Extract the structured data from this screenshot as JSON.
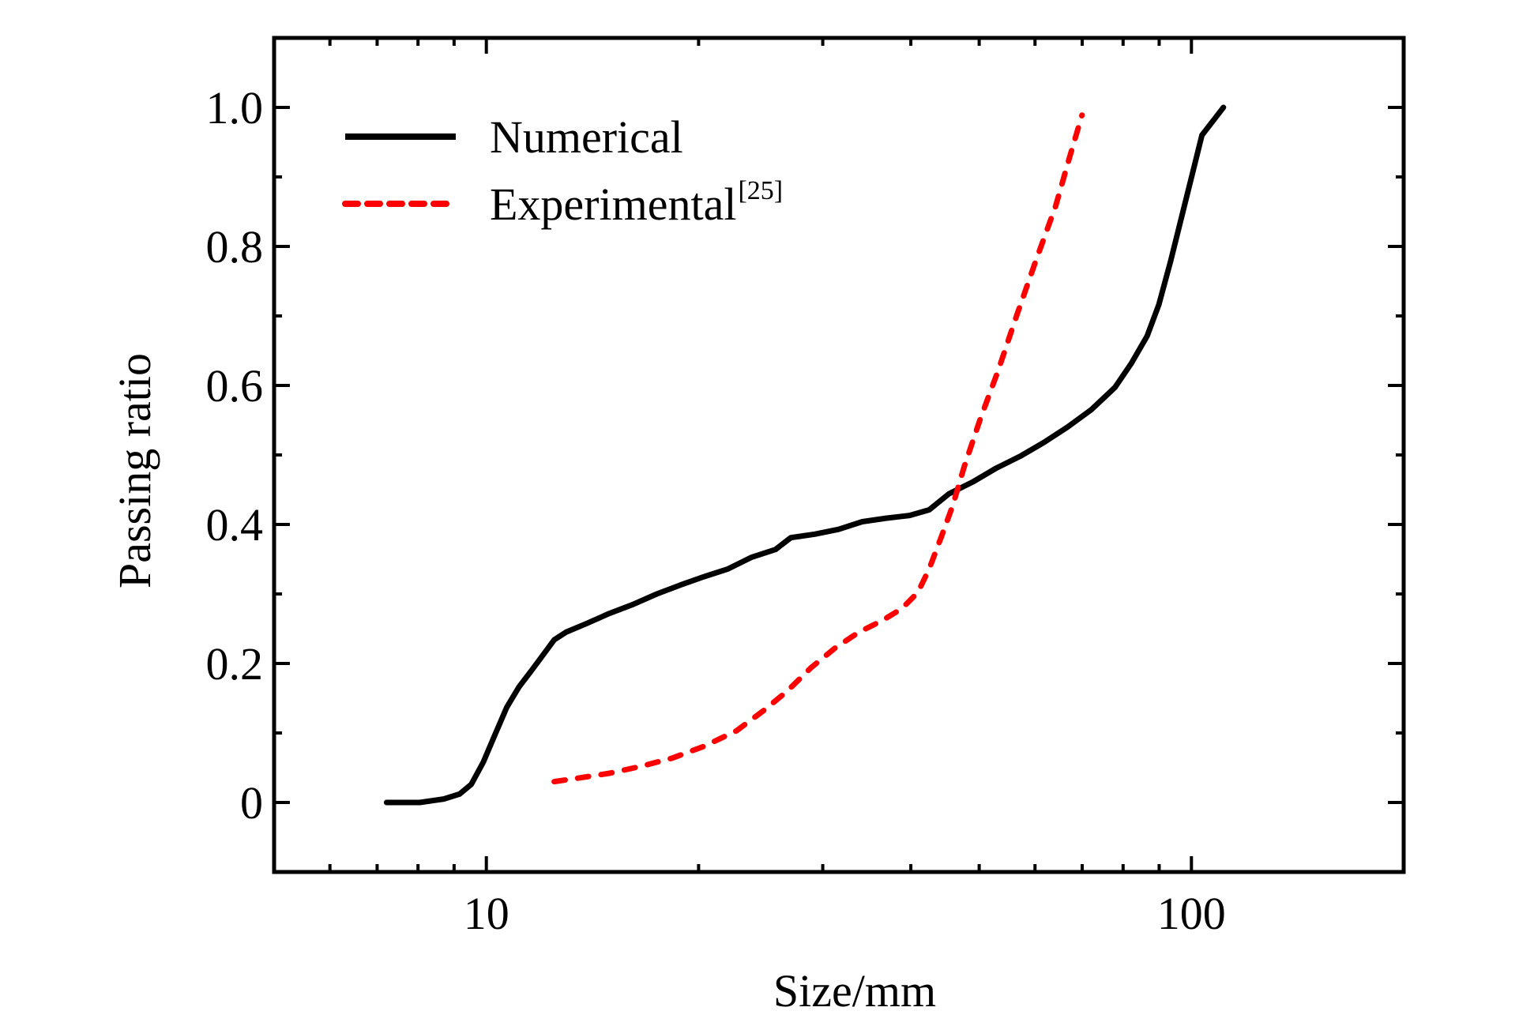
{
  "chart_data": {
    "type": "line",
    "title": "",
    "xlabel": "Size/mm",
    "ylabel": "Passing ratio",
    "xscale": "log",
    "xlim": [
      5,
      200
    ],
    "ylim": [
      -0.1,
      1.1
    ],
    "x_major_ticks": [
      10,
      100
    ],
    "x_major_tick_labels": [
      "10",
      "100"
    ],
    "x_minor_ticks": [
      6,
      7,
      8,
      9,
      20,
      30,
      40,
      50,
      60,
      70,
      80,
      90
    ],
    "y_major_ticks": [
      0,
      0.2,
      0.4,
      0.6,
      0.8,
      1.0
    ],
    "y_major_tick_labels": [
      "0",
      "0.2",
      "0.4",
      "0.6",
      "0.8",
      "1.0"
    ],
    "y_minor_ticks": [
      0.1,
      0.3,
      0.5,
      0.7,
      0.9
    ],
    "grid": false,
    "legend_position": "top-left",
    "series": [
      {
        "name": "Numerical",
        "name_superscript": "",
        "color": "#000000",
        "style": "solid",
        "x": [
          7.22,
          8.05,
          8.7,
          9.16,
          9.52,
          9.9,
          10.29,
          10.69,
          11.12,
          11.55,
          12.01,
          12.48,
          12.97,
          13.84,
          14.95,
          16.15,
          17.45,
          18.86,
          20.38,
          22.02,
          23.8,
          25.71,
          27.03,
          29.23,
          31.59,
          34.13,
          36.88,
          39.84,
          42.47,
          45.28,
          48.94,
          52.87,
          57.14,
          61.77,
          66.69,
          72.09,
          77.88,
          82.1,
          86.52,
          89.9,
          93.43,
          97.1,
          100.9,
          103.5,
          111.0
        ],
        "y": [
          0,
          0,
          0.005,
          0.012,
          0.026,
          0.058,
          0.098,
          0.137,
          0.166,
          0.188,
          0.211,
          0.234,
          0.245,
          0.257,
          0.272,
          0.285,
          0.3,
          0.313,
          0.325,
          0.336,
          0.353,
          0.364,
          0.381,
          0.386,
          0.393,
          0.404,
          0.409,
          0.413,
          0.421,
          0.444,
          0.461,
          0.481,
          0.498,
          0.518,
          0.54,
          0.565,
          0.597,
          0.631,
          0.671,
          0.716,
          0.779,
          0.847,
          0.915,
          0.96,
          1.0
        ]
      },
      {
        "name": "Experimental",
        "name_superscript": "[25]",
        "color": "#ff0000",
        "style": "dashed",
        "x": [
          12.48,
          13.49,
          14.95,
          16.58,
          18.37,
          20.38,
          22.62,
          24.72,
          26.7,
          28.88,
          31.22,
          33.75,
          36.48,
          38.84,
          40.92,
          42.47,
          44.14,
          45.86,
          47.65,
          50.2,
          53.14,
          56.44,
          60.14,
          64.19,
          67.07,
          69.95
        ],
        "y": [
          0.03,
          0.035,
          0.042,
          0.052,
          0.064,
          0.081,
          0.103,
          0.132,
          0.16,
          0.194,
          0.222,
          0.245,
          0.262,
          0.279,
          0.302,
          0.336,
          0.381,
          0.427,
          0.484,
          0.552,
          0.62,
          0.699,
          0.779,
          0.858,
          0.926,
          0.989
        ]
      }
    ]
  }
}
